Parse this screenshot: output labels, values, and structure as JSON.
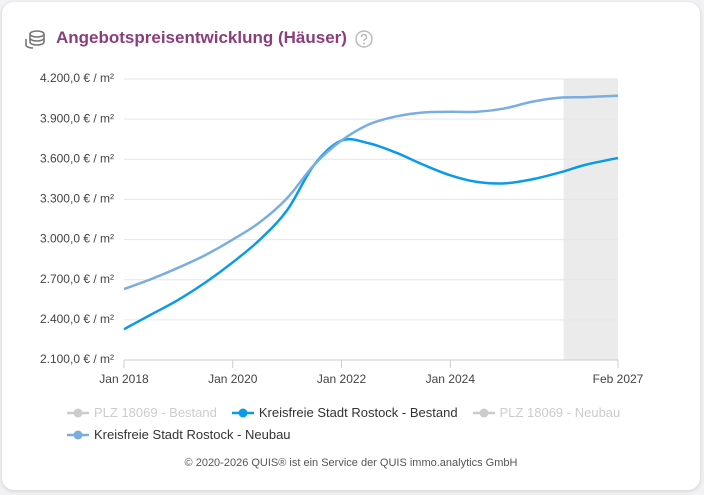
{
  "chart_data": {
    "type": "line",
    "title": "Angebotspreisentwicklung (Häuser)",
    "x": [
      "2018-01",
      "2018-07",
      "2019-01",
      "2019-07",
      "2020-01",
      "2020-07",
      "2021-01",
      "2021-07",
      "2022-01",
      "2022-07",
      "2023-01",
      "2023-07",
      "2024-01",
      "2024-07",
      "2025-01",
      "2025-07",
      "2026-01",
      "2026-07",
      "2027-02"
    ],
    "xlim": [
      "2018-01",
      "2027-02"
    ],
    "xticks": [
      {
        "value": "2018-01",
        "label": "Jan 2018"
      },
      {
        "value": "2020-01",
        "label": "Jan 2020"
      },
      {
        "value": "2022-01",
        "label": "Jan 2022"
      },
      {
        "value": "2024-01",
        "label": "Jan 2024"
      },
      {
        "value": "2027-02",
        "label": "Feb 2027"
      }
    ],
    "ylim": [
      2100,
      4200
    ],
    "yticks": [
      {
        "value": 2100,
        "label": "2.100,0 € / m²"
      },
      {
        "value": 2400,
        "label": "2.400,0 € / m²"
      },
      {
        "value": 2700,
        "label": "2.700,0 € / m²"
      },
      {
        "value": 3000,
        "label": "3.000,0 € / m²"
      },
      {
        "value": 3300,
        "label": "3.300,0 € / m²"
      },
      {
        "value": 3600,
        "label": "3.600,0 € / m²"
      },
      {
        "value": 3900,
        "label": "3.900,0 € / m²"
      },
      {
        "value": 4200,
        "label": "4.200,0 € / m²"
      }
    ],
    "grid": true,
    "forecast_start": "2026-02",
    "series": [
      {
        "name": "PLZ 18069 - Bestand",
        "color": "#cccccc",
        "hidden": true,
        "values": [
          null,
          null,
          null,
          null,
          null,
          null,
          null,
          null,
          null,
          null,
          null,
          null,
          null,
          null,
          null,
          null,
          null,
          null,
          null
        ]
      },
      {
        "name": "Kreisfreie Stadt Rostock - Bestand",
        "color": "#0a9be8",
        "hidden": false,
        "values": [
          2330,
          2440,
          2550,
          2680,
          2830,
          3000,
          3220,
          3560,
          3740,
          3720,
          3650,
          3560,
          3480,
          3430,
          3420,
          3450,
          3500,
          3560,
          3610
        ]
      },
      {
        "name": "PLZ 18069 - Neubau",
        "color": "#cccccc",
        "hidden": true,
        "values": [
          null,
          null,
          null,
          null,
          null,
          null,
          null,
          null,
          null,
          null,
          null,
          null,
          null,
          null,
          null,
          null,
          null,
          null,
          null
        ]
      },
      {
        "name": "Kreisfreie Stadt Rostock - Neubau",
        "color": "#7aaee0",
        "hidden": false,
        "values": [
          2630,
          2705,
          2790,
          2885,
          3000,
          3130,
          3310,
          3560,
          3740,
          3860,
          3920,
          3950,
          3955,
          3955,
          3980,
          4030,
          4060,
          4065,
          4075
        ]
      }
    ]
  },
  "footer": "© 2020-2026 QUIS® ist ein Service der QUIS immo.analytics GmbH"
}
